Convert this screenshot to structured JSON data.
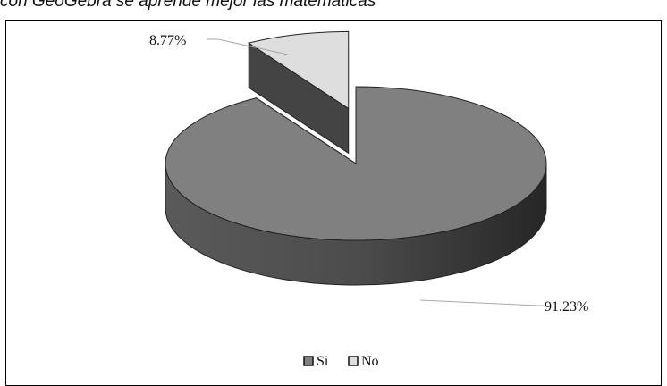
{
  "caption": "con GeoGebra se aprende mejor las matemáticas",
  "chart_data": {
    "type": "pie",
    "style": "3d-exploded",
    "categories": [
      "Si",
      "No"
    ],
    "values": [
      91.23,
      8.77
    ],
    "data_labels": [
      "91.23%",
      "8.77%"
    ],
    "colors": [
      "#808080",
      "#dedede"
    ],
    "legend": {
      "position": "bottom",
      "entries": [
        "Si",
        "No"
      ]
    }
  }
}
